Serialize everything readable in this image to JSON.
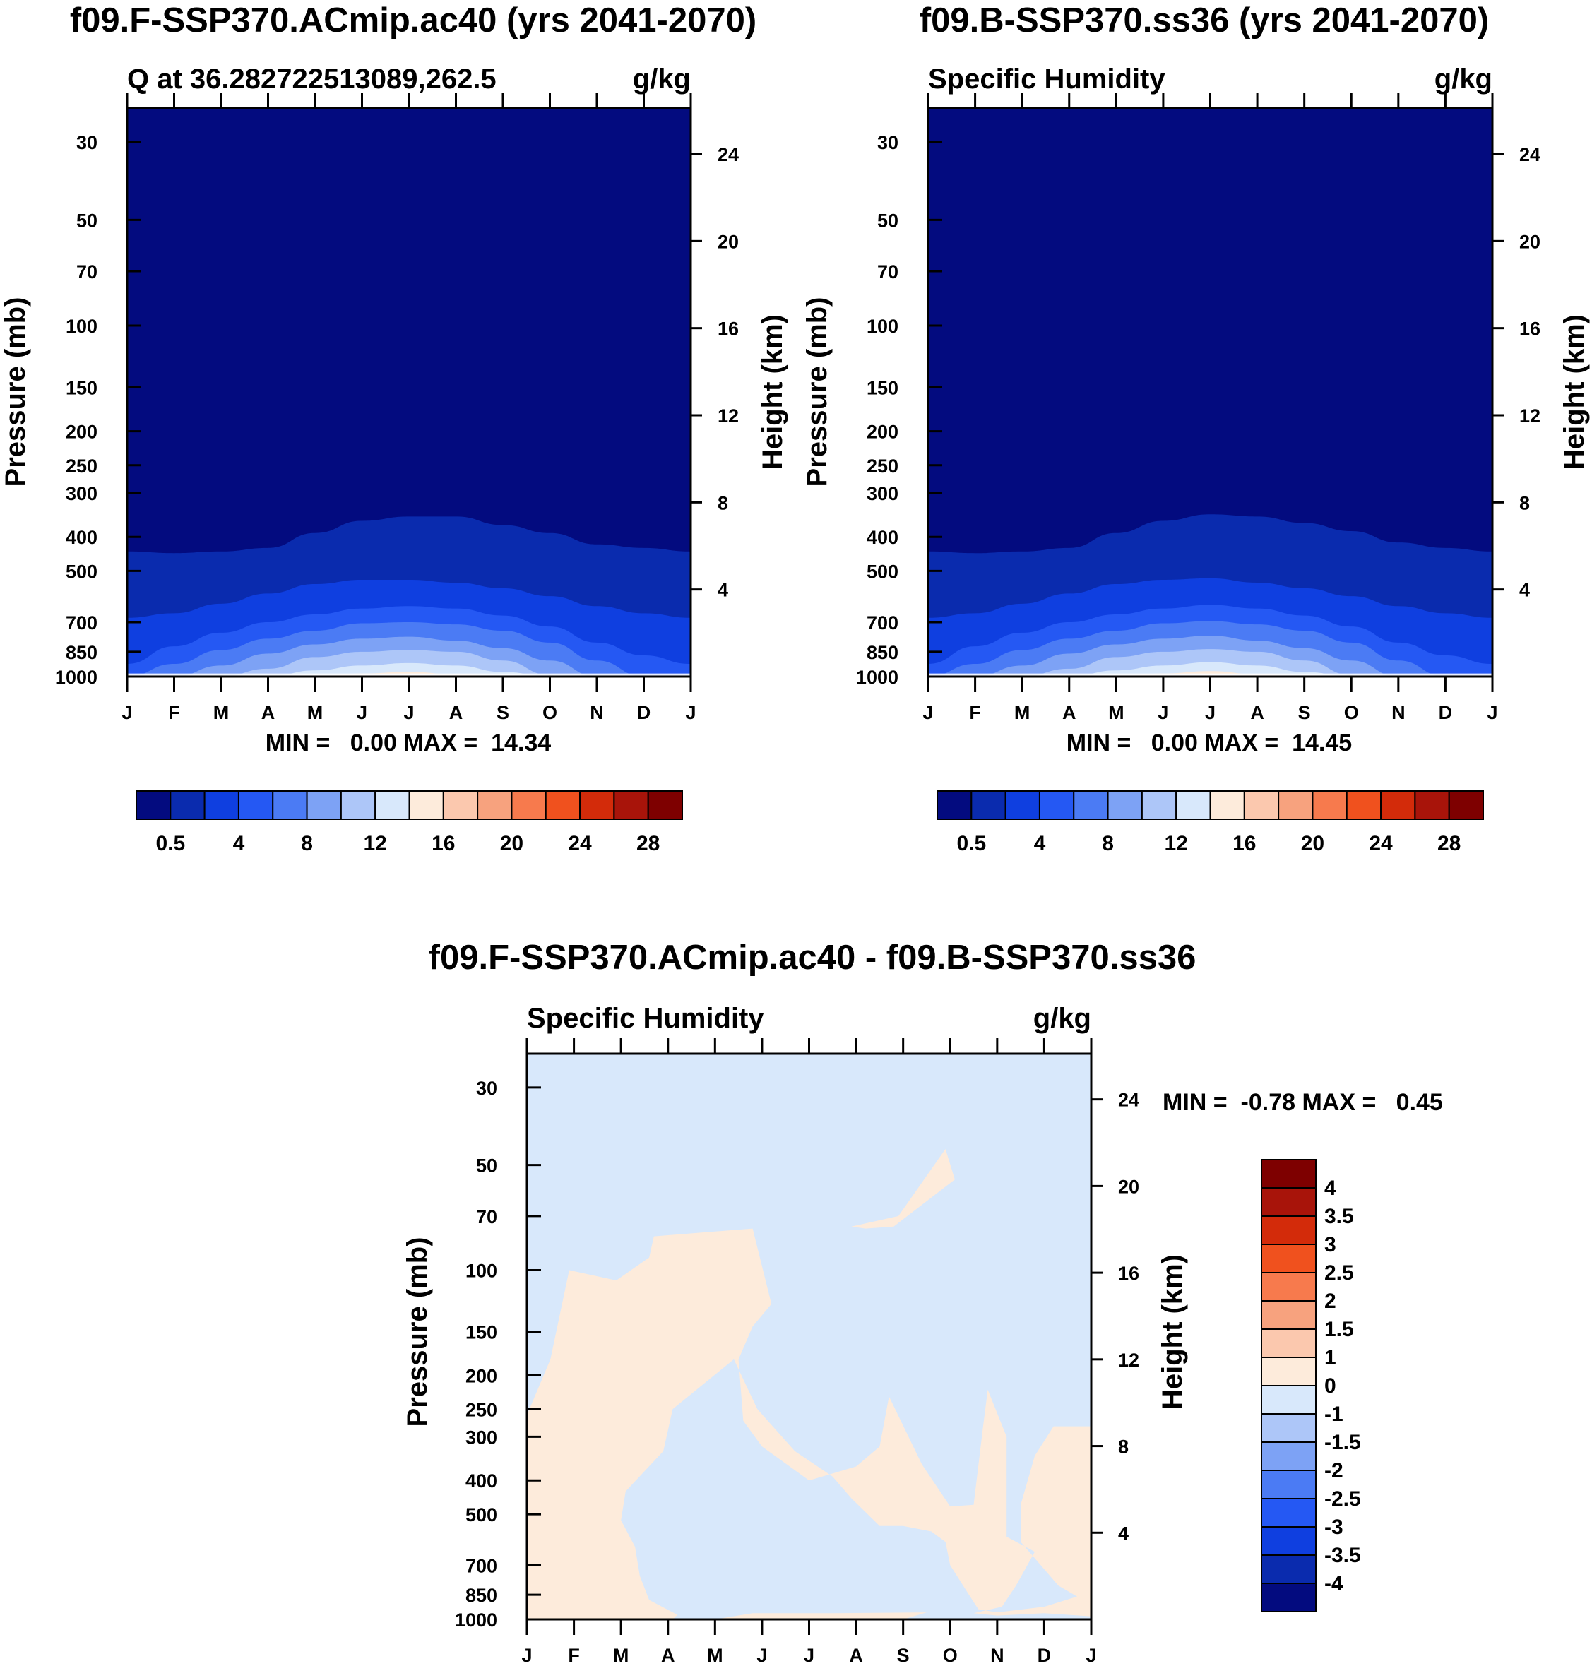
{
  "palettes": {
    "abs": [
      "#030B7F",
      "#0A2BAE",
      "#0F3FE0",
      "#2558F3",
      "#4B7BF4",
      "#7DA2F5",
      "#ADC6F8",
      "#D8E8FB",
      "#FDEBDB",
      "#FBC8AE",
      "#F7A27E",
      "#F77A4D",
      "#F0511E",
      "#D32B0A",
      "#A8140A",
      "#7E0000"
    ],
    "diff": [
      "#030B7F",
      "#0A2BAE",
      "#0F3FE0",
      "#2558F3",
      "#4B7BF4",
      "#7DA2F5",
      "#ADC6F8",
      "#D8E8FB",
      "#FDEBDB",
      "#FBC8AE",
      "#F7A27E",
      "#F77A4D",
      "#F0511E",
      "#D32B0A",
      "#A8140A",
      "#7E0000"
    ]
  },
  "chart_data": [
    {
      "id": "panel_a",
      "type": "contour",
      "title": "f09.F-SSP370.ACmip.ac40 (yrs 2041-2070)",
      "left_string": "Q at 36.282722513089,262.5",
      "right_string": "g/kg",
      "ylabel": "Pressure (mb)",
      "ylabel_right": "Height (km)",
      "x_ticks": [
        "J",
        "F",
        "M",
        "A",
        "M",
        "J",
        "J",
        "A",
        "S",
        "O",
        "N",
        "D",
        "J"
      ],
      "y_ticks": [
        "30",
        "50",
        "70",
        "100",
        "150",
        "200",
        "250",
        "300",
        "400",
        "500",
        "700",
        "850",
        "1000"
      ],
      "y_tick_values": [
        30,
        50,
        70,
        100,
        150,
        200,
        250,
        300,
        400,
        500,
        700,
        850,
        1000
      ],
      "ylim": [
        24,
        1000
      ],
      "height_ticks": [
        "24",
        "20",
        "16",
        "12",
        "8",
        "4"
      ],
      "height_tick_values": [
        24,
        20,
        16,
        12,
        8,
        4
      ],
      "min_max": "MIN =   0.00 MAX =  14.34",
      "contour_levels": [
        0.5,
        2,
        4,
        6,
        8,
        10,
        12,
        14,
        16,
        18,
        20,
        22,
        24,
        26,
        28
      ],
      "colorbar_labels": [
        "0.5",
        "4",
        "8",
        "12",
        "16",
        "20",
        "24",
        "28"
      ],
      "contour_boundaries_mb": {
        "q_0.5": [
          440,
          445,
          440,
          430,
          390,
          360,
          350,
          350,
          370,
          390,
          420,
          430,
          440
        ],
        "q_2": [
          680,
          660,
          620,
          580,
          545,
          530,
          530,
          540,
          560,
          590,
          630,
          660,
          680
        ],
        "q_4": [
          920,
          820,
          750,
          700,
          665,
          640,
          630,
          640,
          670,
          720,
          800,
          870,
          920
        ],
        "q_6": [
          1000,
          920,
          840,
          780,
          740,
          705,
          700,
          710,
          740,
          800,
          900,
          1000,
          1000
        ],
        "q_8": [
          1000,
          1000,
          930,
          860,
          810,
          780,
          770,
          790,
          830,
          900,
          1000,
          1000,
          1000
        ],
        "q_10": [
          1000,
          1000,
          1000,
          950,
          880,
          850,
          840,
          850,
          900,
          990,
          1000,
          1000,
          1000
        ],
        "q_12": [
          1000,
          1000,
          1000,
          1000,
          960,
          930,
          915,
          930,
          970,
          1000,
          1000,
          1000,
          1000
        ],
        "q_14": [
          1000,
          1000,
          1000,
          1000,
          1000,
          980,
          970,
          985,
          1000,
          1000,
          1000,
          1000,
          1000
        ]
      }
    },
    {
      "id": "panel_b",
      "type": "contour",
      "title": "f09.B-SSP370.ss36 (yrs 2041-2070)",
      "left_string": "Specific Humidity",
      "right_string": "g/kg",
      "ylabel": "Pressure (mb)",
      "ylabel_right": "Height (km)",
      "x_ticks": [
        "J",
        "F",
        "M",
        "A",
        "M",
        "J",
        "J",
        "A",
        "S",
        "O",
        "N",
        "D",
        "J"
      ],
      "y_ticks": [
        "30",
        "50",
        "70",
        "100",
        "150",
        "200",
        "250",
        "300",
        "400",
        "500",
        "700",
        "850",
        "1000"
      ],
      "y_tick_values": [
        30,
        50,
        70,
        100,
        150,
        200,
        250,
        300,
        400,
        500,
        700,
        850,
        1000
      ],
      "ylim": [
        24,
        1000
      ],
      "height_ticks": [
        "24",
        "20",
        "16",
        "12",
        "8",
        "4"
      ],
      "height_tick_values": [
        24,
        20,
        16,
        12,
        8,
        4
      ],
      "min_max": "MIN =   0.00 MAX =  14.45",
      "contour_levels": [
        0.5,
        2,
        4,
        6,
        8,
        10,
        12,
        14,
        16,
        18,
        20,
        22,
        24,
        26,
        28
      ],
      "colorbar_labels": [
        "0.5",
        "4",
        "8",
        "12",
        "16",
        "20",
        "24",
        "28"
      ],
      "contour_boundaries_mb": {
        "q_0.5": [
          440,
          445,
          440,
          430,
          390,
          360,
          345,
          350,
          365,
          385,
          415,
          430,
          440
        ],
        "q_2": [
          680,
          660,
          620,
          580,
          545,
          530,
          525,
          540,
          560,
          590,
          630,
          660,
          680
        ],
        "q_4": [
          920,
          820,
          750,
          700,
          665,
          640,
          625,
          640,
          670,
          720,
          800,
          870,
          920
        ],
        "q_6": [
          1000,
          920,
          840,
          780,
          740,
          705,
          695,
          710,
          740,
          800,
          900,
          1000,
          1000
        ],
        "q_8": [
          1000,
          1000,
          930,
          860,
          810,
          780,
          765,
          790,
          830,
          900,
          1000,
          1000,
          1000
        ],
        "q_10": [
          1000,
          1000,
          1000,
          950,
          880,
          850,
          835,
          850,
          900,
          990,
          1000,
          1000,
          1000
        ],
        "q_12": [
          1000,
          1000,
          1000,
          1000,
          960,
          930,
          910,
          930,
          970,
          1000,
          1000,
          1000,
          1000
        ],
        "q_14": [
          1000,
          1000,
          1000,
          1000,
          1000,
          980,
          965,
          985,
          1000,
          1000,
          1000,
          1000,
          1000
        ]
      }
    },
    {
      "id": "panel_c",
      "type": "contour",
      "title": "f09.F-SSP370.ACmip.ac40 - f09.B-SSP370.ss36",
      "left_string": "Specific Humidity",
      "right_string": "g/kg",
      "ylabel": "Pressure (mb)",
      "ylabel_right": "Height (km)",
      "x_ticks": [
        "J",
        "F",
        "M",
        "A",
        "M",
        "J",
        "J",
        "A",
        "S",
        "O",
        "N",
        "D",
        "J"
      ],
      "y_ticks": [
        "30",
        "50",
        "70",
        "100",
        "150",
        "200",
        "250",
        "300",
        "400",
        "500",
        "700",
        "850",
        "1000"
      ],
      "y_tick_values": [
        30,
        50,
        70,
        100,
        150,
        200,
        250,
        300,
        400,
        500,
        700,
        850,
        1000
      ],
      "ylim": [
        24,
        1000
      ],
      "height_ticks": [
        "24",
        "20",
        "16",
        "12",
        "8",
        "4"
      ],
      "height_tick_values": [
        24,
        20,
        16,
        12,
        8,
        4
      ],
      "min_max": "MIN =  -0.78 MAX =   0.45",
      "contour_levels": [
        -4,
        -3.5,
        -3,
        -2.5,
        -2,
        -1.5,
        -1,
        0,
        1,
        1.5,
        2,
        2.5,
        3,
        3.5,
        4
      ],
      "colorbar_labels": [
        "4",
        "3.5",
        "3",
        "2.5",
        "2",
        "1.5",
        "1",
        "0",
        "-1",
        "-1.5",
        "-2",
        "-2.5",
        "-3",
        "-3.5",
        "-4"
      ],
      "background_range": "-1 to 0",
      "positive_regions": [
        [
          [
            0,
            1000
          ],
          [
            0,
            260
          ],
          [
            0.5,
            180
          ],
          [
            0.9,
            100
          ],
          [
            1.9,
            107
          ],
          [
            2.6,
            92
          ],
          [
            2.7,
            80
          ],
          [
            4.8,
            76
          ],
          [
            5.2,
            125
          ],
          [
            4.8,
            145
          ],
          [
            4.5,
            180
          ],
          [
            4.6,
            270
          ],
          [
            5,
            320
          ],
          [
            6,
            400
          ],
          [
            7,
            365
          ],
          [
            7.5,
            320
          ],
          [
            7.7,
            230
          ],
          [
            8.4,
            360
          ],
          [
            9,
            475
          ],
          [
            9.5,
            470
          ],
          [
            9.7,
            280
          ],
          [
            9.8,
            220
          ],
          [
            10.2,
            300
          ],
          [
            10.2,
            580
          ],
          [
            10.8,
            640
          ],
          [
            10.4,
            800
          ],
          [
            10.1,
            920
          ],
          [
            9.5,
            960
          ],
          [
            10,
            975
          ],
          [
            11,
            960
          ],
          [
            12,
            980
          ],
          [
            12,
            280
          ],
          [
            11.2,
            280
          ],
          [
            10.8,
            340
          ],
          [
            10.5,
            470
          ],
          [
            10.5,
            600
          ],
          [
            11.3,
            800
          ],
          [
            11.7,
            860
          ],
          [
            11,
            920
          ],
          [
            10,
            955
          ],
          [
            9.6,
            935
          ],
          [
            9.4,
            850
          ],
          [
            9,
            700
          ],
          [
            8.9,
            600
          ],
          [
            8.6,
            560
          ],
          [
            8,
            540
          ],
          [
            7.5,
            540
          ],
          [
            6.9,
            450
          ],
          [
            6.5,
            390
          ],
          [
            5.7,
            330
          ],
          [
            4.9,
            250
          ],
          [
            4.4,
            180
          ],
          [
            3.1,
            250
          ],
          [
            2.9,
            330
          ],
          [
            2.1,
            430
          ],
          [
            2.0,
            520
          ],
          [
            2.3,
            620
          ],
          [
            2.4,
            750
          ],
          [
            2.6,
            880
          ],
          [
            3.2,
            970
          ],
          [
            3.1,
            1000
          ],
          [
            4,
            1000
          ],
          [
            4.8,
            960
          ],
          [
            6.5,
            960
          ],
          [
            8.5,
            955
          ],
          [
            8,
            1000
          ]
        ],
        [
          [
            6.9,
            75
          ],
          [
            7.9,
            70
          ],
          [
            8.9,
            45
          ],
          [
            9.1,
            55
          ],
          [
            7.8,
            75
          ],
          [
            7.2,
            76
          ]
        ]
      ]
    }
  ]
}
